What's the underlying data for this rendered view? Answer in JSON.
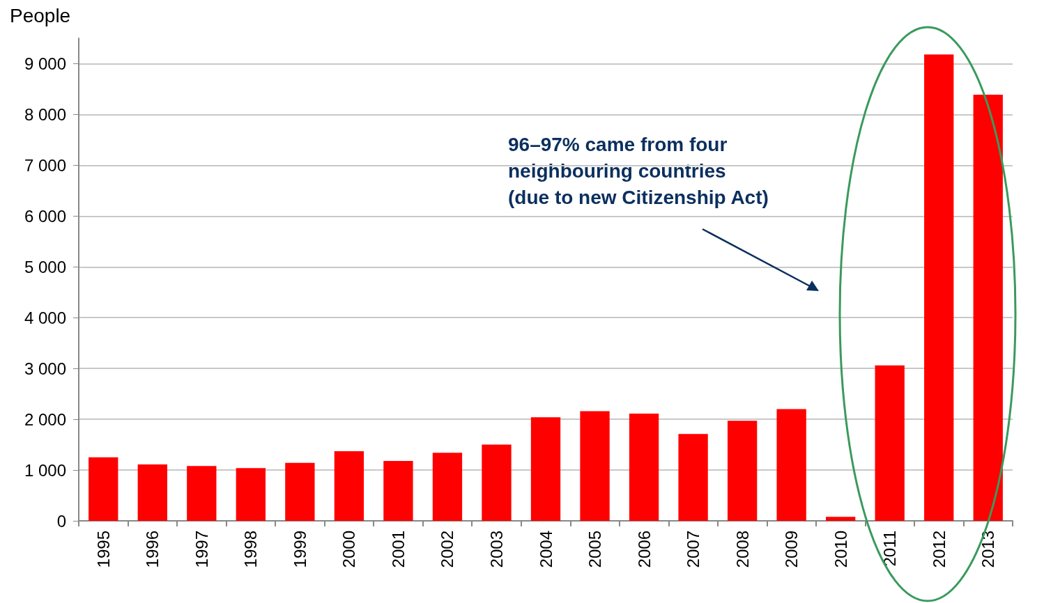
{
  "chart_data": {
    "type": "bar",
    "ylabel": "People",
    "categories": [
      "1995",
      "1996",
      "1997",
      "1998",
      "1999",
      "2000",
      "2001",
      "2002",
      "2003",
      "2004",
      "2005",
      "2006",
      "2007",
      "2008",
      "2009",
      "2010",
      "2011",
      "2012",
      "2013"
    ],
    "values": [
      1250,
      1110,
      1080,
      1040,
      1140,
      1370,
      1180,
      1340,
      1500,
      2040,
      2160,
      2110,
      1710,
      1970,
      2200,
      80,
      3060,
      9180,
      8390
    ],
    "color": "#ff0000",
    "ylim": [
      0,
      9500
    ],
    "yticks": [
      0,
      {
        "value": 1000,
        "label": "1 000"
      },
      {
        "value": 2000,
        "label": "2 000"
      },
      {
        "value": 3000,
        "label": "3 000"
      },
      {
        "value": 4000,
        "label": "4 000"
      },
      {
        "value": 5000,
        "label": "5 000"
      },
      {
        "value": 6000,
        "label": "6 000"
      },
      {
        "value": 7000,
        "label": "7 000"
      },
      {
        "value": 8000,
        "label": "8 000"
      },
      {
        "value": 9000,
        "label": "9 000"
      }
    ],
    "grid": "y",
    "annotations": [
      "96–97% came from four\nneighbouring countries\n(due to new Citizenship Act)"
    ]
  }
}
